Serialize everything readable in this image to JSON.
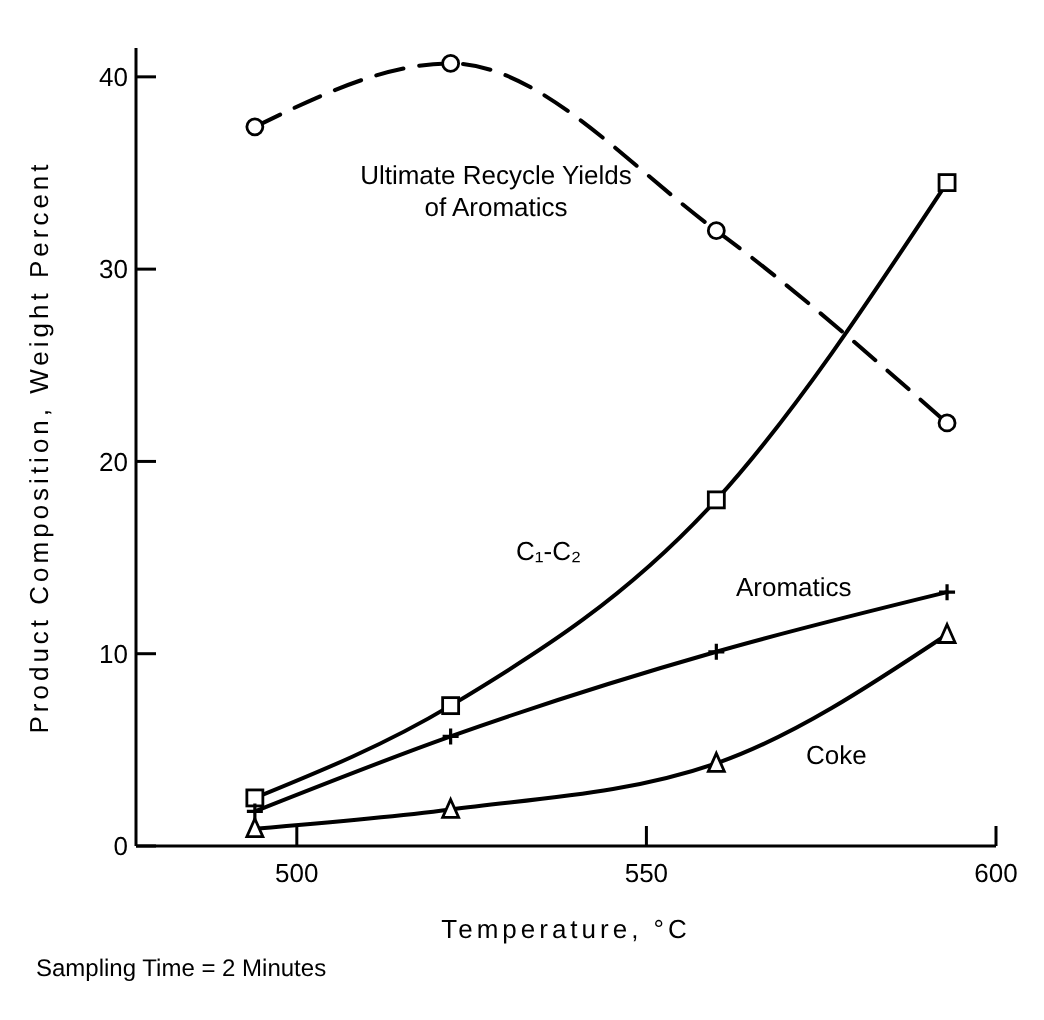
{
  "chart_data": {
    "type": "line",
    "xlabel": "Temperature, °C",
    "ylabel": "Product Composition, Weight Percent",
    "xlim": [
      477,
      600
    ],
    "xticks": [
      500,
      550,
      600
    ],
    "ylim": [
      0,
      41.5
    ],
    "yticks": [
      0,
      10,
      20,
      30,
      40
    ],
    "grid": false,
    "series": [
      {
        "name": "Ultimate Recycle Yields of Aromatics",
        "color": "#000000",
        "x": [
          494,
          522,
          560,
          593
        ],
        "values": [
          37.4,
          40.7,
          32,
          22
        ],
        "marker": "circle",
        "line_style": "dashed"
      },
      {
        "name": "C₁-C₂",
        "color": "#000000",
        "x": [
          494,
          522,
          560,
          593
        ],
        "values": [
          2.5,
          7.3,
          18,
          34.5
        ],
        "marker": "square",
        "line_style": "solid"
      },
      {
        "name": "Aromatics",
        "color": "#000000",
        "x": [
          494,
          522,
          560,
          593
        ],
        "values": [
          1.8,
          5.7,
          10.1,
          13.2
        ],
        "marker": "cross",
        "line_style": "solid"
      },
      {
        "name": "Coke",
        "color": "#000000",
        "x": [
          494,
          522,
          560,
          593
        ],
        "values": [
          0.9,
          1.9,
          4.3,
          11.0
        ],
        "marker": "triangle",
        "line_style": "solid"
      }
    ],
    "annotations": [
      "Sampling Time = 2 Minutes"
    ]
  }
}
